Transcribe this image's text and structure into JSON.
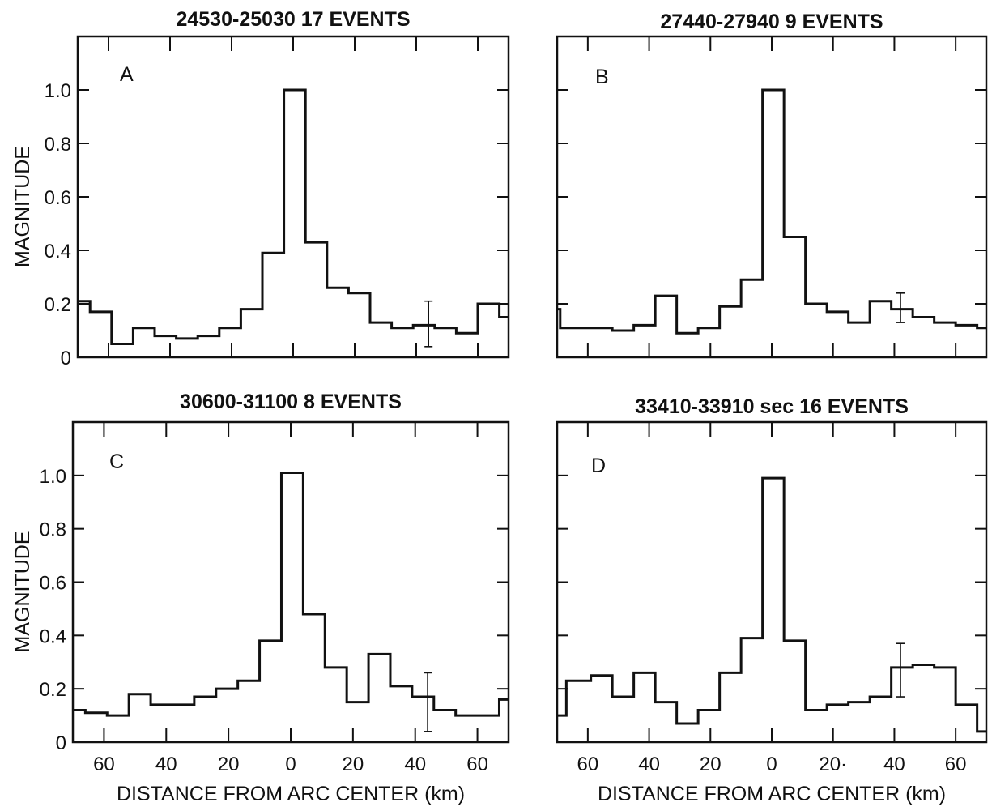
{
  "chart_data": [
    {
      "type": "line",
      "panel": "A",
      "title": "24530-25030  17 EVENTS",
      "xlabel": "",
      "ylabel": "MAGNITUDE",
      "x_tick_labels": [],
      "y_tick_labels": [
        "0",
        "0.2",
        "0.4",
        "0.6",
        "0.8",
        "1.0"
      ],
      "xlim": [
        -70,
        70
      ],
      "ylim": [
        0,
        1.2
      ],
      "step_edges": [
        -70,
        -66,
        -59,
        -52,
        -45,
        -38,
        -31,
        -24,
        -17,
        -10,
        -3,
        4,
        11,
        18,
        25,
        32,
        39,
        46,
        53,
        60,
        67,
        70
      ],
      "values": [
        0.21,
        0.17,
        0.05,
        0.11,
        0.08,
        0.07,
        0.08,
        0.11,
        0.18,
        0.39,
        1.0,
        0.43,
        0.26,
        0.24,
        0.13,
        0.11,
        0.12,
        0.11,
        0.09,
        0.2,
        0.15
      ],
      "error_bar": {
        "x": 44,
        "low": 0.04,
        "high": 0.21
      }
    },
    {
      "type": "line",
      "panel": "B",
      "title": "27440-27940  9 EVENTS",
      "xlabel": "",
      "ylabel": "",
      "x_tick_labels": [],
      "y_tick_labels": [],
      "xlim": [
        -70,
        70
      ],
      "ylim": [
        0,
        1.2
      ],
      "step_edges": [
        -70,
        -69,
        -59,
        -52,
        -45,
        -38,
        -31,
        -24,
        -17,
        -10,
        -3,
        4,
        11,
        18,
        25,
        32,
        39,
        46,
        53,
        60,
        67,
        70
      ],
      "values": [
        0.18,
        0.11,
        0.11,
        0.1,
        0.12,
        0.23,
        0.09,
        0.11,
        0.19,
        0.29,
        1.0,
        0.45,
        0.2,
        0.17,
        0.13,
        0.21,
        0.18,
        0.15,
        0.13,
        0.12,
        0.11
      ],
      "error_bar": {
        "x": 42,
        "low": 0.13,
        "high": 0.24
      }
    },
    {
      "type": "line",
      "panel": "C",
      "title": "30600-31100  8 EVENTS",
      "xlabel": "DISTANCE FROM ARC CENTER (km)",
      "ylabel": "MAGNITUDE",
      "x_tick_labels": [
        {
          "x": -60,
          "label": "60"
        },
        {
          "x": -40,
          "label": "40"
        },
        {
          "x": -20,
          "label": "20"
        },
        {
          "x": 0,
          "label": "0"
        },
        {
          "x": 20,
          "label": "20"
        },
        {
          "x": 40,
          "label": "40"
        },
        {
          "x": 60,
          "label": "60"
        }
      ],
      "y_tick_labels": [
        "0",
        "0.2",
        "0.4",
        "0.6",
        "0.8",
        "1.0"
      ],
      "xlim": [
        -70,
        70
      ],
      "ylim": [
        0,
        1.2
      ],
      "step_edges": [
        -70,
        -66,
        -59,
        -52,
        -45,
        -38,
        -31,
        -24,
        -17,
        -10,
        -3,
        4,
        11,
        18,
        25,
        32,
        39,
        46,
        53,
        60,
        67,
        70
      ],
      "values": [
        0.12,
        0.11,
        0.1,
        0.18,
        0.14,
        0.14,
        0.17,
        0.2,
        0.23,
        0.38,
        1.01,
        0.48,
        0.28,
        0.15,
        0.33,
        0.21,
        0.17,
        0.12,
        0.1,
        0.1,
        0.16
      ],
      "error_bar": {
        "x": 44,
        "low": 0.04,
        "high": 0.26
      }
    },
    {
      "type": "line",
      "panel": "D",
      "title": "33410-33910 sec  16 EVENTS",
      "xlabel": "DISTANCE FROM ARC CENTER (km)",
      "ylabel": "",
      "x_tick_labels": [
        {
          "x": -60,
          "label": "60"
        },
        {
          "x": -40,
          "label": "40"
        },
        {
          "x": -20,
          "label": "20"
        },
        {
          "x": 0,
          "label": "0"
        },
        {
          "x": 20,
          "label": "20·"
        },
        {
          "x": 40,
          "label": "40"
        },
        {
          "x": 60,
          "label": "60"
        }
      ],
      "y_tick_labels": [],
      "xlim": [
        -70,
        70
      ],
      "ylim": [
        0,
        1.2
      ],
      "step_edges": [
        -70,
        -67,
        -59,
        -52,
        -45,
        -38,
        -31,
        -24,
        -17,
        -10,
        -3,
        4,
        11,
        18,
        25,
        32,
        39,
        46,
        53,
        60,
        67,
        70
      ],
      "values": [
        0.1,
        0.23,
        0.25,
        0.17,
        0.26,
        0.15,
        0.07,
        0.12,
        0.26,
        0.39,
        0.99,
        0.38,
        0.12,
        0.14,
        0.15,
        0.17,
        0.28,
        0.29,
        0.28,
        0.14,
        0.04
      ],
      "error_bar": {
        "x": 42,
        "low": 0.17,
        "high": 0.37
      }
    }
  ]
}
